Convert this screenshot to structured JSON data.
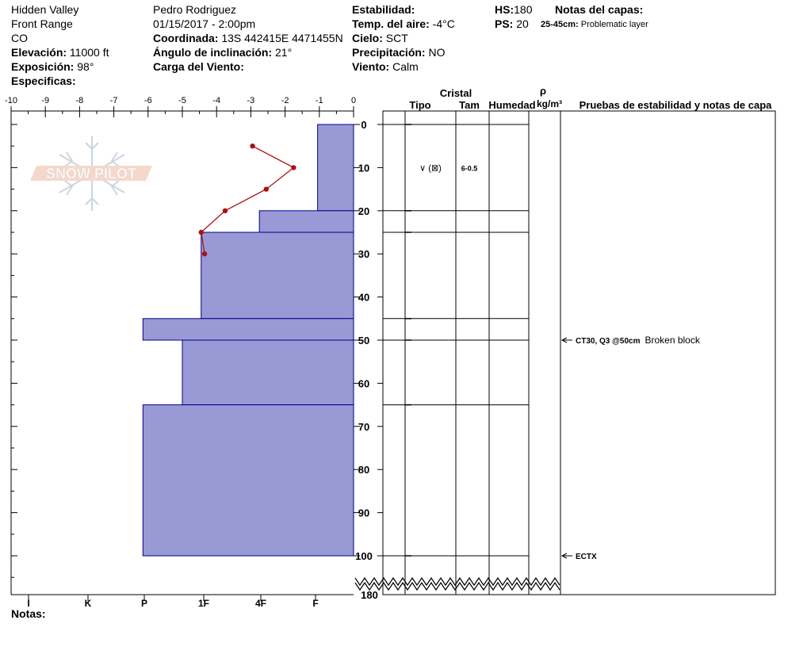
{
  "header": {
    "location": "Hidden Valley",
    "range": "Front Range",
    "state": "CO",
    "elevation_label": "Elevación:",
    "elevation_value": "11000 ft",
    "aspect_label": "Exposición:",
    "aspect_value": "98°",
    "specifics_label": "Especificas:",
    "observer": "Pedro Rodriguez",
    "datetime": "01/15/2017 - 2:00pm",
    "coord_label": "Coordinada:",
    "coord_value": "13S 442415E 4471455N",
    "slope_label": "Ángulo de inclinación:",
    "slope_value": "21°",
    "wind_load_label": "Carga del Viento:",
    "stability_label": "Estabilidad:",
    "air_temp_label": "Temp. del aire:",
    "air_temp_value": "-4°C",
    "sky_label": "Cielo:",
    "sky_value": "SCT",
    "precip_label": "Precipitación:",
    "precip_value": "NO",
    "wind_label": "Viento:",
    "wind_value": "Calm",
    "hs_label": "HS:",
    "hs_value": "180",
    "ps_label": "PS:",
    "ps_value": "20",
    "layer_notes_label": "Notas del capas:",
    "layer_note_range": "25-45cm:",
    "layer_note_text": "Problematic layer",
    "notes_label": "Notas:"
  },
  "columns": {
    "crystal": "Cristal",
    "type": "Tipo",
    "size": "Tam",
    "moisture": "Humedad",
    "density_symbol": "ρ",
    "density_unit": "kg/m³",
    "tests": "Pruebas de estabilidad y notas de capa"
  },
  "logo_text": "SNOW PILOT",
  "chart_data": {
    "type": "snow_profile",
    "depth_axis": {
      "ticks": [
        0,
        10,
        20,
        30,
        40,
        50,
        60,
        70,
        80,
        90,
        100
      ],
      "bottom_label": "180",
      "range": [
        0,
        100
      ]
    },
    "temp_axis": {
      "ticks": [
        "-10",
        "-9",
        "-8",
        "-7",
        "-6",
        "-5",
        "-4",
        "-3",
        "-2",
        "-1",
        "0"
      ],
      "range": [
        -10,
        0
      ]
    },
    "hardness_labels": [
      "I",
      "K",
      "P",
      "1F",
      "4F",
      "F"
    ],
    "hardness_layers": [
      {
        "top": 0,
        "bottom": 20,
        "temp_equiv": -1.05
      },
      {
        "top": 20,
        "bottom": 25,
        "temp_equiv": -2.75
      },
      {
        "top": 25,
        "bottom": 45,
        "temp_equiv": -4.45
      },
      {
        "top": 45,
        "bottom": 50,
        "temp_equiv": -6.15
      },
      {
        "top": 50,
        "bottom": 65,
        "temp_equiv": -5.0
      },
      {
        "top": 65,
        "bottom": 100,
        "temp_equiv": -6.15
      }
    ],
    "temperature_profile": [
      {
        "depth": 5,
        "temp": -2.95
      },
      {
        "depth": 10,
        "temp": -1.75
      },
      {
        "depth": 15,
        "temp": -2.55
      },
      {
        "depth": 20,
        "temp": -3.75
      },
      {
        "depth": 25,
        "temp": -4.45
      },
      {
        "depth": 30,
        "temp": -4.35
      }
    ],
    "layer_boundaries": [
      0,
      20,
      25,
      45,
      50,
      65,
      100
    ],
    "crystal_rows": [
      {
        "depth": 10,
        "type": "∨ (⊠)",
        "size": "6-0.5"
      }
    ],
    "stability_tests": [
      {
        "depth": 50,
        "test": "CT30, Q3 @50cm",
        "note": "Broken block"
      },
      {
        "depth": 100,
        "test": "ECTX",
        "note": ""
      }
    ],
    "colors": {
      "hardness_fill": "#9999d6",
      "hardness_stroke": "#000088",
      "temp_line": "#aa1111",
      "temp_point": "#aa1111"
    }
  }
}
